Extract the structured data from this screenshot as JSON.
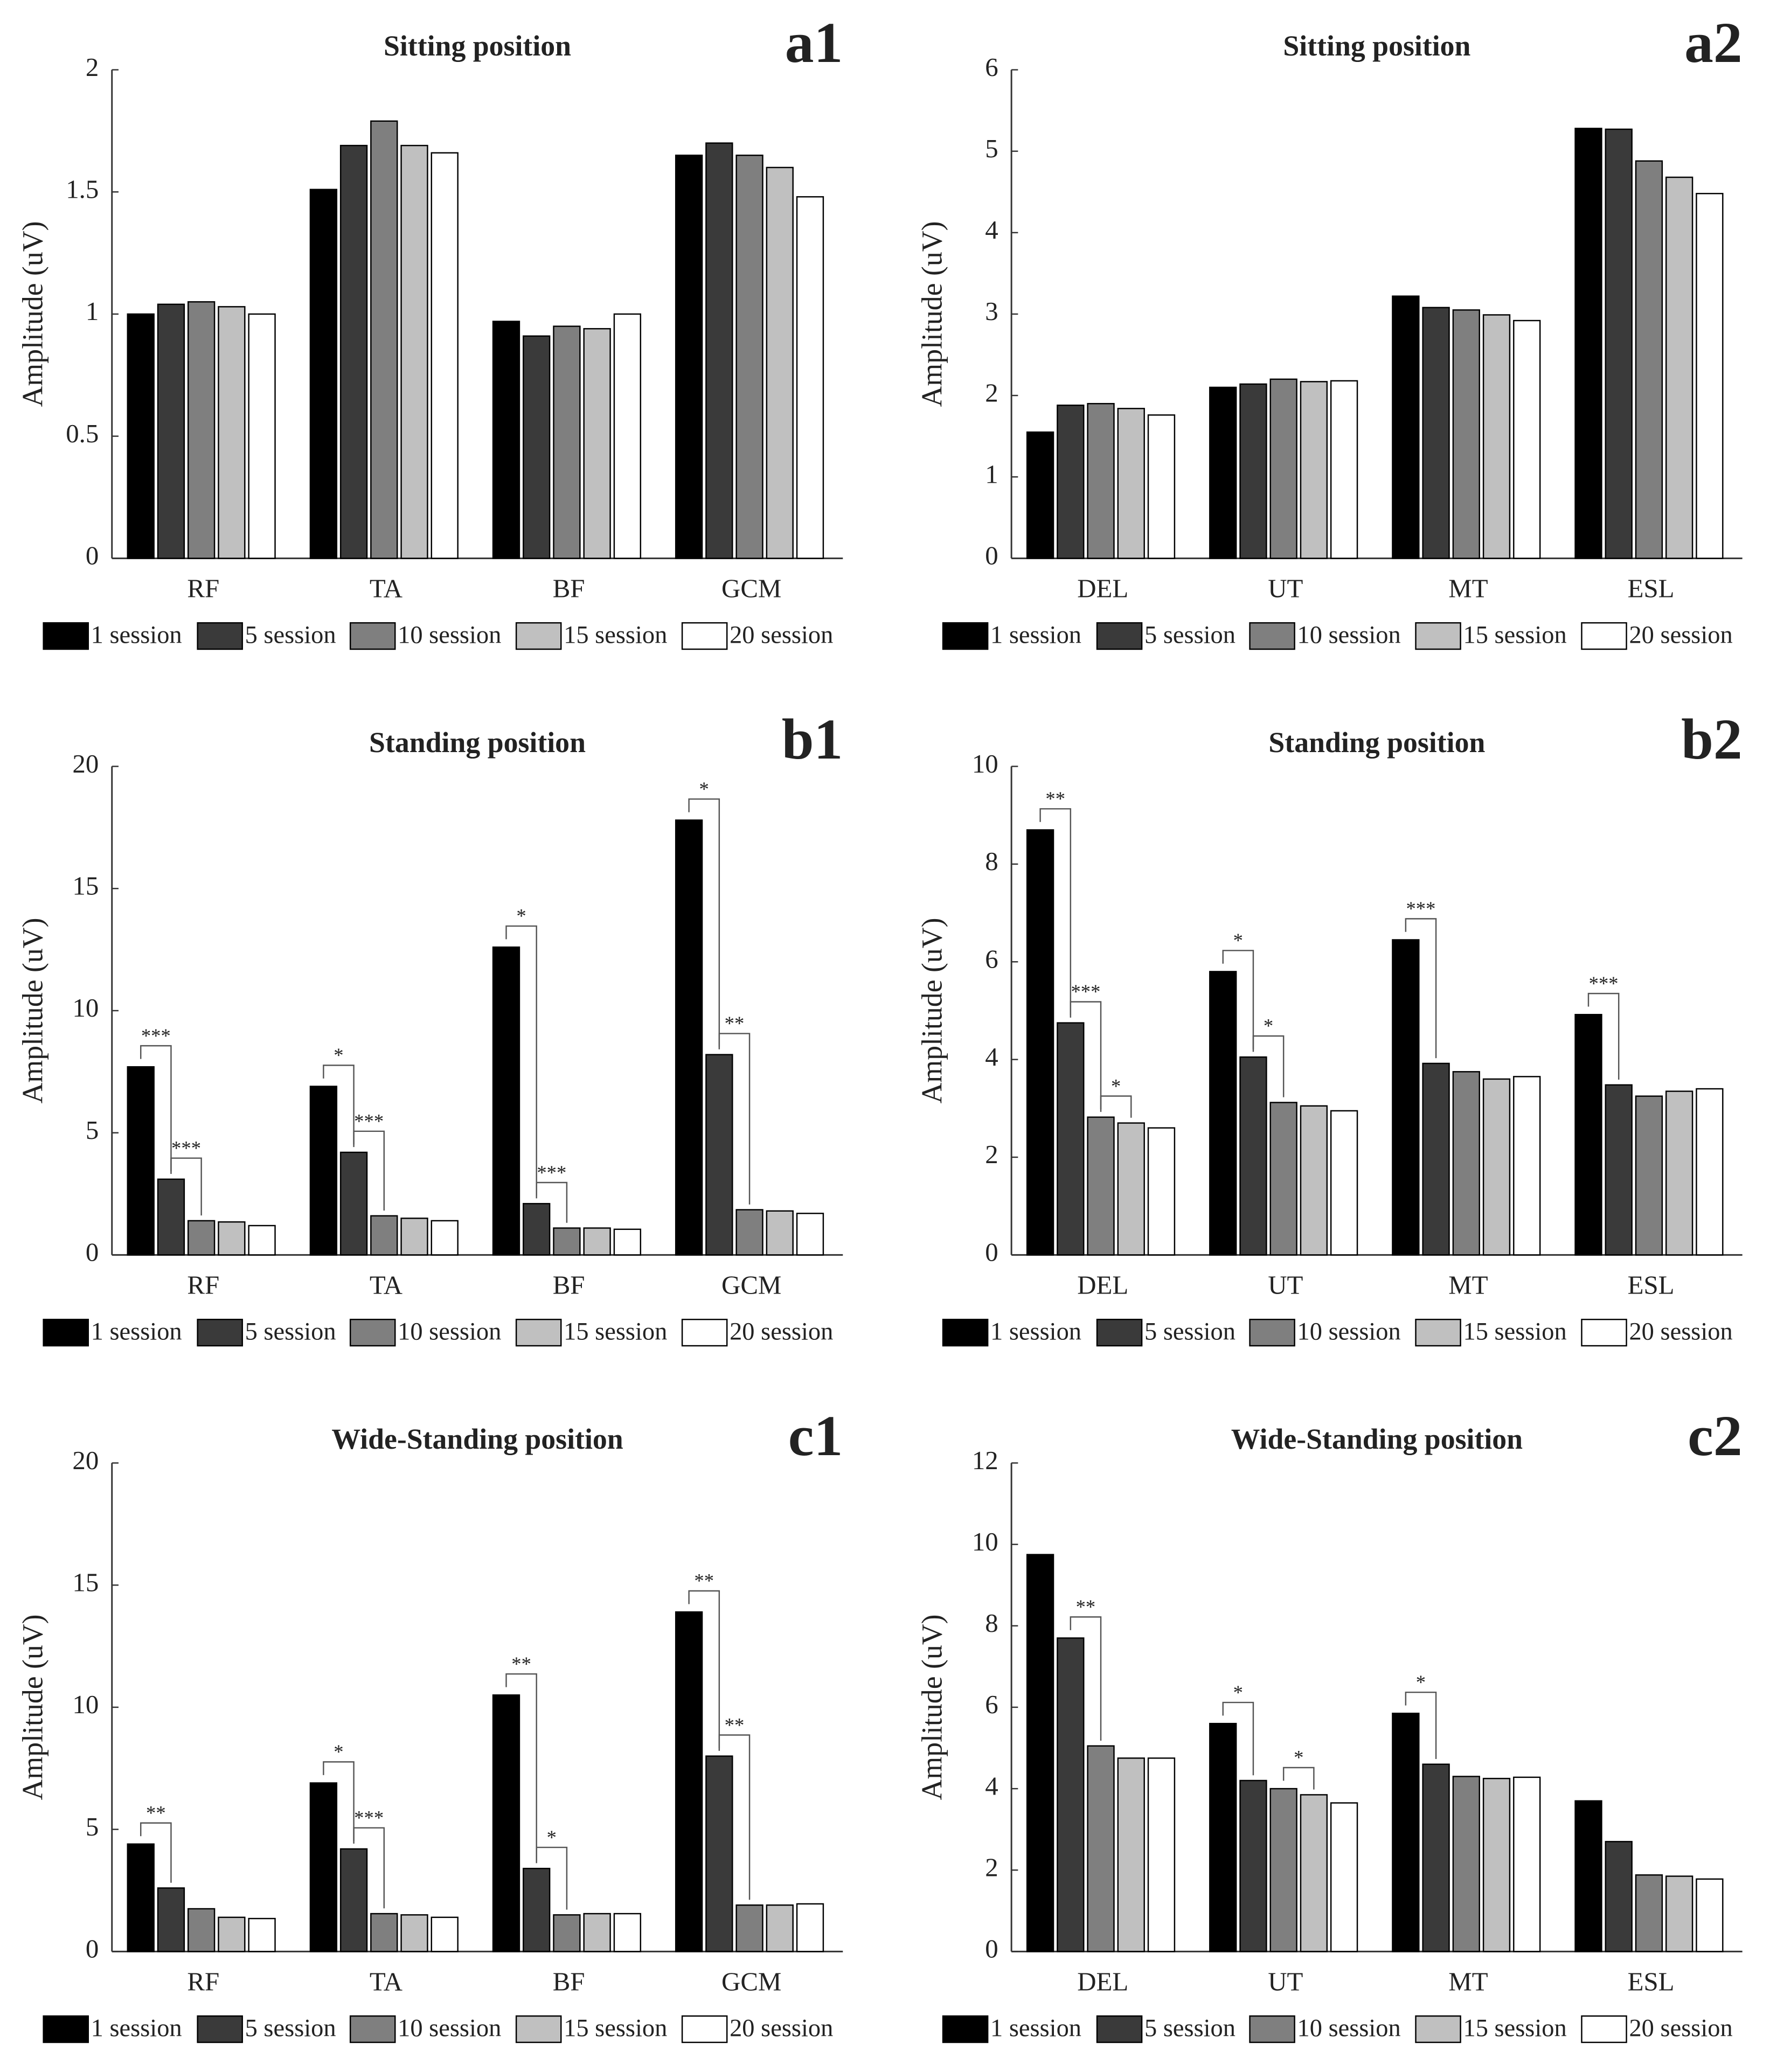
{
  "chart_data": [
    {
      "type": "bar",
      "title": "Sitting position",
      "panel_label": "a1",
      "y_label": "Amplitude (uV)",
      "categories": [
        "RF",
        "TA",
        "BF",
        "GCM"
      ],
      "ylim": [
        0,
        2
      ],
      "yticks": [
        0,
        0.5,
        1,
        1.5,
        2
      ],
      "legend": "bottom",
      "series": [
        {
          "name": "1 session",
          "color": "#000000",
          "values": [
            1.0,
            1.51,
            0.97,
            1.65
          ]
        },
        {
          "name": "5 session",
          "color": "#3a3a3a",
          "values": [
            1.04,
            1.69,
            0.91,
            1.7
          ]
        },
        {
          "name": "10 session",
          "color": "#7f7f7f",
          "values": [
            1.05,
            1.79,
            0.95,
            1.65
          ]
        },
        {
          "name": "15 session",
          "color": "#c0c0c0",
          "values": [
            1.03,
            1.69,
            0.94,
            1.6
          ]
        },
        {
          "name": "20 session",
          "color": "#ffffff",
          "values": [
            1.0,
            1.66,
            1.0,
            1.48
          ]
        }
      ],
      "annotations": []
    },
    {
      "type": "bar",
      "title": "Sitting position",
      "panel_label": "a2",
      "y_label": "Amplitude (uV)",
      "categories": [
        "DEL",
        "UT",
        "MT",
        "ESL"
      ],
      "ylim": [
        0,
        6
      ],
      "yticks": [
        0,
        1,
        2,
        3,
        4,
        5,
        6
      ],
      "legend": "bottom",
      "series": [
        {
          "name": "1 session",
          "color": "#000000",
          "values": [
            1.55,
            2.1,
            3.22,
            5.28
          ]
        },
        {
          "name": "5 session",
          "color": "#3a3a3a",
          "values": [
            1.88,
            2.14,
            3.08,
            5.27
          ]
        },
        {
          "name": "10 session",
          "color": "#7f7f7f",
          "values": [
            1.9,
            2.2,
            3.05,
            4.88
          ]
        },
        {
          "name": "15 session",
          "color": "#c0c0c0",
          "values": [
            1.84,
            2.17,
            2.99,
            4.68
          ]
        },
        {
          "name": "20 session",
          "color": "#ffffff",
          "values": [
            1.76,
            2.18,
            2.92,
            4.48
          ]
        }
      ],
      "annotations": []
    },
    {
      "type": "bar",
      "title": "Standing position",
      "panel_label": "b1",
      "y_label": "Amplitude (uV)",
      "categories": [
        "RF",
        "TA",
        "BF",
        "GCM"
      ],
      "ylim": [
        0,
        20
      ],
      "yticks": [
        0,
        5,
        10,
        15,
        20
      ],
      "legend": "bottom",
      "series": [
        {
          "name": "1 session",
          "color": "#000000",
          "values": [
            7.7,
            6.9,
            12.6,
            17.8
          ]
        },
        {
          "name": "5 session",
          "color": "#3a3a3a",
          "values": [
            3.1,
            4.2,
            2.1,
            8.2
          ]
        },
        {
          "name": "10 session",
          "color": "#7f7f7f",
          "values": [
            1.4,
            1.6,
            1.1,
            1.85
          ]
        },
        {
          "name": "15 session",
          "color": "#c0c0c0",
          "values": [
            1.35,
            1.5,
            1.1,
            1.8
          ]
        },
        {
          "name": "20 session",
          "color": "#ffffff",
          "values": [
            1.2,
            1.4,
            1.05,
            1.7
          ]
        }
      ],
      "annotations": [
        {
          "category": "RF",
          "from": "1 session",
          "to": "5 session",
          "label": "***"
        },
        {
          "category": "RF",
          "from": "5 session",
          "to": "10 session",
          "label": "***"
        },
        {
          "category": "TA",
          "from": "1 session",
          "to": "5 session",
          "label": "*"
        },
        {
          "category": "TA",
          "from": "5 session",
          "to": "10 session",
          "label": "***"
        },
        {
          "category": "BF",
          "from": "1 session",
          "to": "5 session",
          "label": "*"
        },
        {
          "category": "BF",
          "from": "5 session",
          "to": "10 session",
          "label": "***"
        },
        {
          "category": "GCM",
          "from": "1 session",
          "to": "5 session",
          "label": "*"
        },
        {
          "category": "GCM",
          "from": "5 session",
          "to": "10 session",
          "label": "**"
        }
      ]
    },
    {
      "type": "bar",
      "title": "Standing position",
      "panel_label": "b2",
      "y_label": "Amplitude (uV)",
      "categories": [
        "DEL",
        "UT",
        "MT",
        "ESL"
      ],
      "ylim": [
        0,
        10
      ],
      "yticks": [
        0,
        2,
        4,
        6,
        8,
        10
      ],
      "legend": "bottom",
      "series": [
        {
          "name": "1 session",
          "color": "#000000",
          "values": [
            8.7,
            5.8,
            6.45,
            4.92
          ]
        },
        {
          "name": "5 session",
          "color": "#3a3a3a",
          "values": [
            4.75,
            4.05,
            3.92,
            3.48
          ]
        },
        {
          "name": "10 session",
          "color": "#7f7f7f",
          "values": [
            2.82,
            3.12,
            3.75,
            3.25
          ]
        },
        {
          "name": "15 session",
          "color": "#c0c0c0",
          "values": [
            2.7,
            3.05,
            3.6,
            3.35
          ]
        },
        {
          "name": "20 session",
          "color": "#ffffff",
          "values": [
            2.6,
            2.95,
            3.65,
            3.4
          ]
        }
      ],
      "annotations": [
        {
          "category": "DEL",
          "from": "1 session",
          "to": "5 session",
          "label": "**"
        },
        {
          "category": "DEL",
          "from": "5 session",
          "to": "10 session",
          "label": "***"
        },
        {
          "category": "DEL",
          "from": "10 session",
          "to": "15 session",
          "label": "*"
        },
        {
          "category": "UT",
          "from": "1 session",
          "to": "5 session",
          "label": "*"
        },
        {
          "category": "UT",
          "from": "5 session",
          "to": "10 session",
          "label": "*"
        },
        {
          "category": "MT",
          "from": "1 session",
          "to": "5 session",
          "label": "***"
        },
        {
          "category": "ESL",
          "from": "1 session",
          "to": "5 session",
          "label": "***"
        }
      ]
    },
    {
      "type": "bar",
      "title": "Wide-Standing position",
      "panel_label": "c1",
      "y_label": "Amplitude (uV)",
      "categories": [
        "RF",
        "TA",
        "BF",
        "GCM"
      ],
      "ylim": [
        0,
        20
      ],
      "yticks": [
        0,
        5,
        10,
        15,
        20
      ],
      "legend": "bottom",
      "series": [
        {
          "name": "1 session",
          "color": "#000000",
          "values": [
            4.4,
            6.9,
            10.5,
            13.9
          ]
        },
        {
          "name": "5 session",
          "color": "#3a3a3a",
          "values": [
            2.6,
            4.2,
            3.4,
            8.0
          ]
        },
        {
          "name": "10 session",
          "color": "#7f7f7f",
          "values": [
            1.75,
            1.55,
            1.5,
            1.9
          ]
        },
        {
          "name": "15 session",
          "color": "#c0c0c0",
          "values": [
            1.4,
            1.5,
            1.55,
            1.9
          ]
        },
        {
          "name": "20 session",
          "color": "#ffffff",
          "values": [
            1.35,
            1.4,
            1.55,
            1.95
          ]
        }
      ],
      "annotations": [
        {
          "category": "RF",
          "from": "1 session",
          "to": "5 session",
          "label": "**"
        },
        {
          "category": "TA",
          "from": "1 session",
          "to": "5 session",
          "label": "*"
        },
        {
          "category": "TA",
          "from": "5 session",
          "to": "10 session",
          "label": "***"
        },
        {
          "category": "BF",
          "from": "1 session",
          "to": "5 session",
          "label": "**"
        },
        {
          "category": "BF",
          "from": "5 session",
          "to": "10 session",
          "label": "*"
        },
        {
          "category": "GCM",
          "from": "1 session",
          "to": "5 session",
          "label": "**"
        },
        {
          "category": "GCM",
          "from": "5 session",
          "to": "10 session",
          "label": "**"
        }
      ]
    },
    {
      "type": "bar",
      "title": "Wide-Standing position",
      "panel_label": "c2",
      "y_label": "Amplitude (uV)",
      "categories": [
        "DEL",
        "UT",
        "MT",
        "ESL"
      ],
      "ylim": [
        0,
        12
      ],
      "yticks": [
        0,
        2,
        4,
        6,
        8,
        10,
        12
      ],
      "legend": "bottom",
      "series": [
        {
          "name": "1 session",
          "color": "#000000",
          "values": [
            9.75,
            5.6,
            5.85,
            3.7
          ]
        },
        {
          "name": "5 session",
          "color": "#3a3a3a",
          "values": [
            7.7,
            4.2,
            4.6,
            2.7
          ]
        },
        {
          "name": "10 session",
          "color": "#7f7f7f",
          "values": [
            5.05,
            4.0,
            4.3,
            1.88
          ]
        },
        {
          "name": "15 session",
          "color": "#c0c0c0",
          "values": [
            4.75,
            3.85,
            4.25,
            1.85
          ]
        },
        {
          "name": "20 session",
          "color": "#ffffff",
          "values": [
            4.75,
            3.65,
            4.28,
            1.78
          ]
        }
      ],
      "annotations": [
        {
          "category": "DEL",
          "from": "5 session",
          "to": "10 session",
          "label": "**"
        },
        {
          "category": "UT",
          "from": "1 session",
          "to": "5 session",
          "label": "*"
        },
        {
          "category": "UT",
          "from": "10 session",
          "to": "15 session",
          "label": "*"
        },
        {
          "category": "MT",
          "from": "1 session",
          "to": "5 session",
          "label": "*"
        }
      ]
    }
  ]
}
